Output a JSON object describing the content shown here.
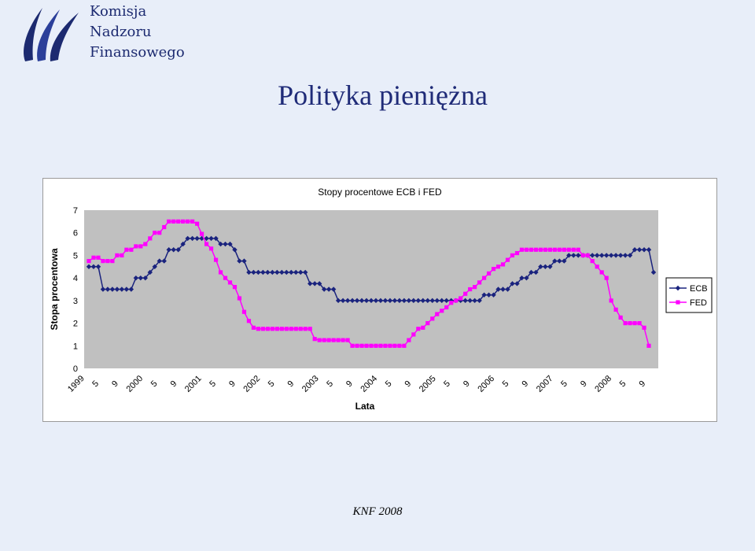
{
  "logo": {
    "lines": [
      "Komisja",
      "Nadzoru",
      "Finansowego"
    ]
  },
  "slide_title": "Polityka pieniężna",
  "footer": "KNF 2008",
  "colors": {
    "ecb": "#1a237e",
    "fed": "#ff00ff",
    "plot_bg": "#c0c0c0",
    "page_bg": "#e8eef9"
  },
  "chart_data": {
    "type": "line",
    "title": "Stopy procentowe ECB i FED",
    "xlabel": "Lata",
    "ylabel": "Stopa procentowa",
    "ylim": [
      0,
      7
    ],
    "yticks": [
      "0",
      "1",
      "2",
      "3",
      "4",
      "5",
      "6",
      "7"
    ],
    "xtick_labels": [
      "1999",
      "5",
      "9",
      "2000",
      "5",
      "9",
      "2001",
      "5",
      "9",
      "2002",
      "5",
      "9",
      "2003",
      "5",
      "9",
      "2004",
      "5",
      "9",
      "2005",
      "5",
      "9",
      "2006",
      "5",
      "9",
      "2007",
      "5",
      "9",
      "2008",
      "5",
      "9"
    ],
    "legend_position": "right",
    "grid": false,
    "series": [
      {
        "name": "ECB",
        "values": [
          4.5,
          4.5,
          4.5,
          3.5,
          3.5,
          3.5,
          3.5,
          3.5,
          3.5,
          3.5,
          4.0,
          4.0,
          4.0,
          4.25,
          4.5,
          4.75,
          4.75,
          5.25,
          5.25,
          5.25,
          5.5,
          5.75,
          5.75,
          5.75,
          5.75,
          5.75,
          5.75,
          5.75,
          5.5,
          5.5,
          5.5,
          5.25,
          4.75,
          4.75,
          4.25,
          4.25,
          4.25,
          4.25,
          4.25,
          4.25,
          4.25,
          4.25,
          4.25,
          4.25,
          4.25,
          4.25,
          4.25,
          3.75,
          3.75,
          3.75,
          3.5,
          3.5,
          3.5,
          3.0,
          3.0,
          3.0,
          3.0,
          3.0,
          3.0,
          3.0,
          3.0,
          3.0,
          3.0,
          3.0,
          3.0,
          3.0,
          3.0,
          3.0,
          3.0,
          3.0,
          3.0,
          3.0,
          3.0,
          3.0,
          3.0,
          3.0,
          3.0,
          3.0,
          3.0,
          3.0,
          3.0,
          3.0,
          3.0,
          3.0,
          3.25,
          3.25,
          3.25,
          3.5,
          3.5,
          3.5,
          3.75,
          3.75,
          4.0,
          4.0,
          4.25,
          4.25,
          4.5,
          4.5,
          4.5,
          4.75,
          4.75,
          4.75,
          5.0,
          5.0,
          5.0,
          5.0,
          5.0,
          5.0,
          5.0,
          5.0,
          5.0,
          5.0,
          5.0,
          5.0,
          5.0,
          5.0,
          5.25,
          5.25,
          5.25,
          5.25,
          4.25
        ]
      },
      {
        "name": "FED",
        "values": [
          4.75,
          4.9,
          4.9,
          4.75,
          4.75,
          4.75,
          5.0,
          5.0,
          5.25,
          5.25,
          5.4,
          5.4,
          5.5,
          5.75,
          6.0,
          6.0,
          6.25,
          6.5,
          6.5,
          6.5,
          6.5,
          6.5,
          6.5,
          6.4,
          5.95,
          5.5,
          5.3,
          4.8,
          4.25,
          4.0,
          3.8,
          3.6,
          3.1,
          2.5,
          2.1,
          1.8,
          1.75,
          1.75,
          1.75,
          1.75,
          1.75,
          1.75,
          1.75,
          1.75,
          1.75,
          1.75,
          1.75,
          1.75,
          1.3,
          1.25,
          1.25,
          1.25,
          1.25,
          1.25,
          1.25,
          1.25,
          1.0,
          1.0,
          1.0,
          1.0,
          1.0,
          1.0,
          1.0,
          1.0,
          1.0,
          1.0,
          1.0,
          1.0,
          1.25,
          1.5,
          1.75,
          1.8,
          2.0,
          2.2,
          2.4,
          2.55,
          2.7,
          2.9,
          3.0,
          3.1,
          3.3,
          3.5,
          3.6,
          3.8,
          4.0,
          4.2,
          4.4,
          4.5,
          4.6,
          4.8,
          5.0,
          5.1,
          5.25,
          5.25,
          5.25,
          5.25,
          5.25,
          5.25,
          5.25,
          5.25,
          5.25,
          5.25,
          5.25,
          5.25,
          5.25,
          5.0,
          5.0,
          4.75,
          4.5,
          4.25,
          4.0,
          3.0,
          2.6,
          2.25,
          2.0,
          2.0,
          2.0,
          2.0,
          1.8,
          1.0
        ]
      }
    ]
  }
}
